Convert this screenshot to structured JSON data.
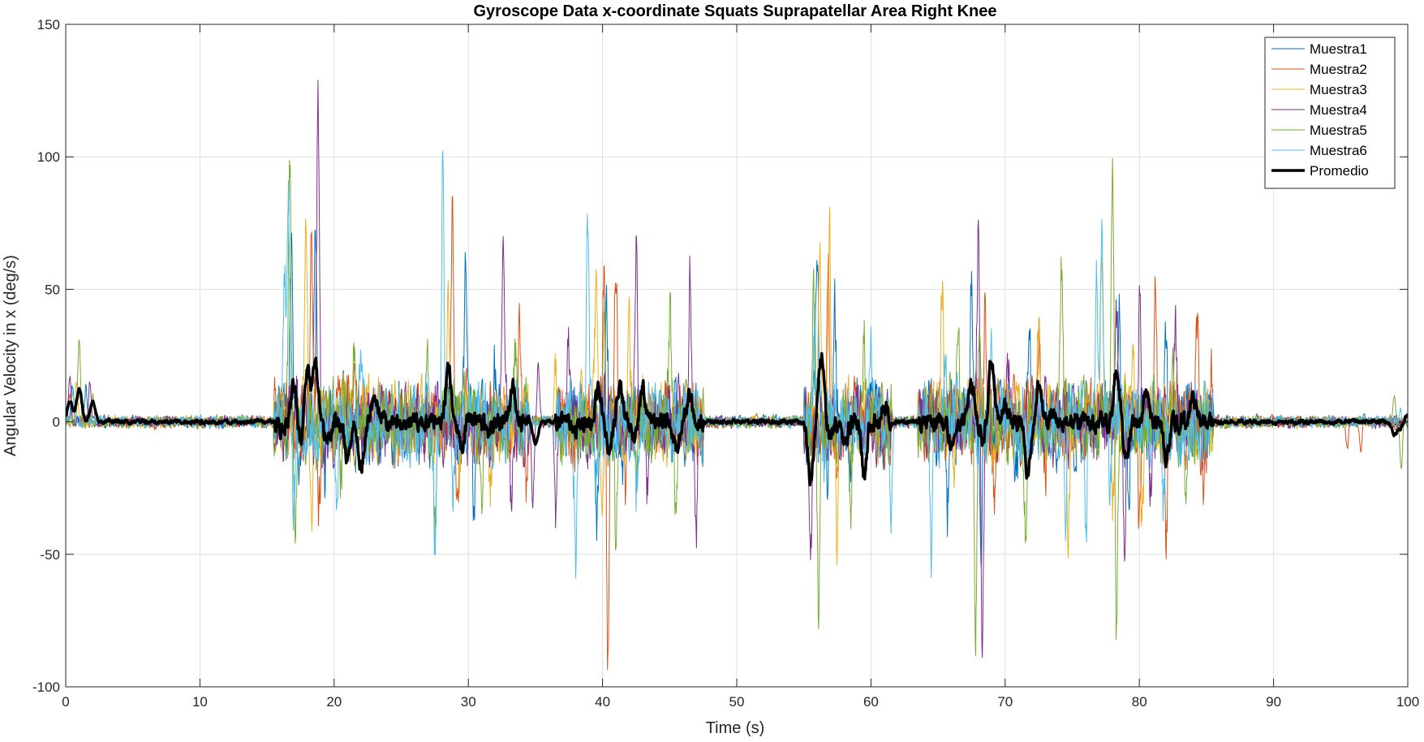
{
  "chart_data": {
    "type": "line",
    "title": "Gyroscope Data x-coordinate Squats Suprapatellar Area Right Knee",
    "xlabel": "Time (s)",
    "ylabel": "Angular Velocity in x (deg/s)",
    "xlim": [
      0,
      100
    ],
    "ylim": [
      -100,
      150
    ],
    "xticks": [
      0,
      10,
      20,
      30,
      40,
      50,
      60,
      70,
      80,
      90,
      100
    ],
    "yticks": [
      -100,
      -50,
      0,
      50,
      100,
      150
    ],
    "grid": true,
    "legend_position": "top-right",
    "active_ranges": [
      [
        15.5,
        34.5
      ],
      [
        36.5,
        47.5
      ],
      [
        55,
        61.5
      ],
      [
        63.5,
        85.5
      ]
    ],
    "series": [
      {
        "name": "Muestra1",
        "color": "#0072BD",
        "line_width": 1,
        "peaks": [
          [
            0.5,
            14
          ],
          [
            1.5,
            12
          ],
          [
            16.8,
            65
          ],
          [
            17.5,
            -22
          ],
          [
            18.6,
            86
          ],
          [
            19.3,
            -25
          ],
          [
            29.8,
            69
          ],
          [
            30.4,
            -30
          ],
          [
            32,
            22
          ],
          [
            39.6,
            -40
          ],
          [
            40.3,
            45
          ],
          [
            41.5,
            -20
          ],
          [
            56,
            70
          ],
          [
            56.8,
            -25
          ],
          [
            57.3,
            45
          ],
          [
            58.5,
            -18
          ],
          [
            65.7,
            -30
          ],
          [
            67.5,
            53
          ],
          [
            68.2,
            -40
          ],
          [
            70.8,
            -25
          ],
          [
            71.8,
            40
          ],
          [
            78.5,
            47
          ],
          [
            79.2,
            -30
          ],
          [
            82,
            30
          ]
        ]
      },
      {
        "name": "Muestra2",
        "color": "#D95319",
        "line_width": 1,
        "peaks": [
          [
            0.3,
            10
          ],
          [
            18.3,
            84
          ],
          [
            18.9,
            -28
          ],
          [
            21.5,
            24
          ],
          [
            28.8,
            77
          ],
          [
            29.2,
            -38
          ],
          [
            33.8,
            37
          ],
          [
            34.3,
            -30
          ],
          [
            40.1,
            48
          ],
          [
            40.4,
            -93
          ],
          [
            41,
            60
          ],
          [
            41.7,
            -30
          ],
          [
            56.8,
            60
          ],
          [
            57.5,
            -30
          ],
          [
            68.5,
            50
          ],
          [
            69.2,
            -35
          ],
          [
            72.5,
            45
          ],
          [
            73,
            -25
          ],
          [
            80,
            -40
          ],
          [
            81.2,
            50
          ],
          [
            82,
            -40
          ],
          [
            84.3,
            39
          ],
          [
            84.8,
            -25
          ],
          [
            85.3,
            22
          ],
          [
            95.5,
            -10
          ],
          [
            96.5,
            -13
          ]
        ]
      },
      {
        "name": "Muestra3",
        "color": "#EDB120",
        "line_width": 1,
        "peaks": [
          [
            0.8,
            15
          ],
          [
            17.9,
            73
          ],
          [
            18.3,
            -35
          ],
          [
            22.5,
            20
          ],
          [
            28.5,
            36
          ],
          [
            29.3,
            -30
          ],
          [
            31.6,
            -35
          ],
          [
            36.5,
            28
          ],
          [
            39.5,
            47
          ],
          [
            40,
            -35
          ],
          [
            42,
            30
          ],
          [
            56.2,
            66
          ],
          [
            56.9,
            78
          ],
          [
            57.5,
            -45
          ],
          [
            65.3,
            50
          ],
          [
            66.2,
            -20
          ],
          [
            72.5,
            40
          ],
          [
            74.7,
            -45
          ],
          [
            77.2,
            60
          ],
          [
            78,
            -40
          ],
          [
            79.5,
            40
          ],
          [
            80.2,
            -30
          ]
        ]
      },
      {
        "name": "Muestra4",
        "color": "#7E2F8E",
        "line_width": 1,
        "peaks": [
          [
            0.3,
            17
          ],
          [
            1.8,
            15
          ],
          [
            18.8,
            125
          ],
          [
            19.2,
            -20
          ],
          [
            32.6,
            70
          ],
          [
            33.2,
            -30
          ],
          [
            34.8,
            -32
          ],
          [
            35.2,
            22
          ],
          [
            36.5,
            -30
          ],
          [
            37.5,
            28
          ],
          [
            42.5,
            73
          ],
          [
            43.3,
            -25
          ],
          [
            46.5,
            65
          ],
          [
            47,
            -40
          ],
          [
            55.5,
            -57
          ],
          [
            68,
            78
          ],
          [
            68.3,
            -79
          ],
          [
            70.2,
            25
          ],
          [
            78.3,
            36
          ],
          [
            78.9,
            -50
          ],
          [
            80,
            45
          ],
          [
            80.8,
            -28
          ],
          [
            82.7,
            33
          ]
        ]
      },
      {
        "name": "Muestra5",
        "color": "#77AC30",
        "line_width": 1,
        "peaks": [
          [
            1,
            31
          ],
          [
            2,
            10
          ],
          [
            16.7,
            96
          ],
          [
            17.1,
            -36
          ],
          [
            20.5,
            -20
          ],
          [
            21.5,
            29
          ],
          [
            26.9,
            32
          ],
          [
            27.5,
            -45
          ],
          [
            31,
            -35
          ],
          [
            33.5,
            28
          ],
          [
            40.1,
            50
          ],
          [
            41,
            -40
          ],
          [
            42.5,
            -30
          ],
          [
            45,
            42
          ],
          [
            45.5,
            -35
          ],
          [
            55.7,
            53
          ],
          [
            56.1,
            -70
          ],
          [
            58.5,
            -25
          ],
          [
            59.5,
            30
          ],
          [
            66.5,
            35
          ],
          [
            67.8,
            -70
          ],
          [
            68.1,
            45
          ],
          [
            71.5,
            -40
          ],
          [
            74.2,
            55
          ],
          [
            78,
            89
          ],
          [
            78.3,
            -76
          ],
          [
            82.5,
            32
          ],
          [
            83.5,
            -25
          ],
          [
            99,
            8
          ],
          [
            99.5,
            -18
          ]
        ]
      },
      {
        "name": "Muestra6",
        "color": "#4DBEEE",
        "line_width": 1,
        "peaks": [
          [
            0.5,
            13
          ],
          [
            16.3,
            60
          ],
          [
            16.6,
            81
          ],
          [
            17,
            -30
          ],
          [
            20.2,
            -40
          ],
          [
            22,
            20
          ],
          [
            27.5,
            -49
          ],
          [
            28.1,
            103
          ],
          [
            28.8,
            -30
          ],
          [
            38,
            -59
          ],
          [
            38.9,
            80
          ],
          [
            39.5,
            -35
          ],
          [
            42.5,
            -35
          ],
          [
            55.8,
            45
          ],
          [
            56.5,
            -25
          ],
          [
            60,
            36
          ],
          [
            61.5,
            -28
          ],
          [
            64.5,
            -55
          ],
          [
            65.5,
            25
          ],
          [
            69,
            35
          ],
          [
            74.5,
            -40
          ],
          [
            76,
            -47
          ],
          [
            76.8,
            60
          ],
          [
            77.2,
            62
          ],
          [
            77.8,
            -30
          ],
          [
            81.8,
            -35
          ],
          [
            99.5,
            3
          ]
        ]
      },
      {
        "name": "Promedio",
        "color": "#000000",
        "line_width": 3.5,
        "peaks": [
          [
            0.3,
            8
          ],
          [
            1,
            12
          ],
          [
            2,
            8
          ],
          [
            3,
            0
          ],
          [
            16,
            -3
          ],
          [
            17,
            15
          ],
          [
            17.5,
            -10
          ],
          [
            18,
            20
          ],
          [
            18.6,
            23
          ],
          [
            19.5,
            -8
          ],
          [
            21,
            -15
          ],
          [
            22,
            -18
          ],
          [
            23,
            8
          ],
          [
            28.5,
            20
          ],
          [
            29.5,
            -10
          ],
          [
            31.5,
            -5
          ],
          [
            33.3,
            13
          ],
          [
            35,
            -8
          ],
          [
            38,
            -3
          ],
          [
            39.7,
            13
          ],
          [
            40.5,
            -10
          ],
          [
            41.3,
            14
          ],
          [
            42.3,
            -5
          ],
          [
            43,
            12
          ],
          [
            45.5,
            -10
          ],
          [
            46.5,
            10
          ],
          [
            55.5,
            -22
          ],
          [
            56.3,
            25
          ],
          [
            57,
            -5
          ],
          [
            58,
            -10
          ],
          [
            59.5,
            -19
          ],
          [
            61,
            7
          ],
          [
            66,
            -10
          ],
          [
            67.5,
            14
          ],
          [
            68.3,
            -5
          ],
          [
            69,
            24
          ],
          [
            70,
            5
          ],
          [
            71.7,
            -20
          ],
          [
            72.5,
            14
          ],
          [
            73.5,
            3
          ],
          [
            78.3,
            22
          ],
          [
            79,
            -15
          ],
          [
            80.5,
            10
          ],
          [
            82,
            -15
          ],
          [
            84,
            9
          ],
          [
            90,
            -1
          ],
          [
            99,
            -5
          ],
          [
            99.5,
            -2
          ],
          [
            100,
            3
          ]
        ]
      }
    ]
  }
}
